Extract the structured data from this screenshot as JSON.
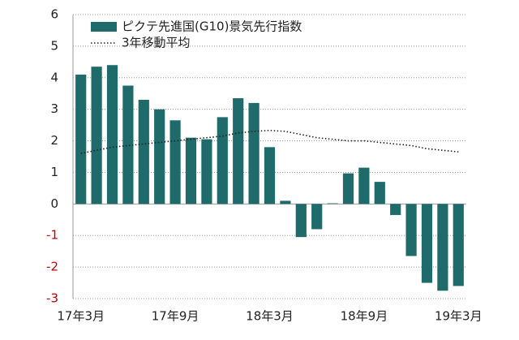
{
  "chart_data": {
    "type": "bar",
    "categories": [
      "17年3月",
      null,
      null,
      null,
      null,
      null,
      "17年9月",
      null,
      null,
      null,
      null,
      null,
      "18年3月",
      null,
      null,
      null,
      null,
      null,
      "18年9月",
      null,
      null,
      null,
      null,
      null,
      "19年3月"
    ],
    "series": [
      {
        "name": "ピクテ先進国(G10)景気先行指数",
        "type": "bar",
        "color": "#1f6b6b",
        "values": [
          4.1,
          4.35,
          4.4,
          3.75,
          3.3,
          3.0,
          2.65,
          2.1,
          2.05,
          2.75,
          3.35,
          3.2,
          1.8,
          0.1,
          -1.05,
          -0.8,
          0.02,
          0.97,
          1.15,
          0.7,
          -0.35,
          -1.65,
          -2.5,
          -2.75,
          -2.6
        ]
      },
      {
        "name": "3年移動平均",
        "type": "line",
        "color": "#222222",
        "values": [
          1.6,
          1.7,
          1.8,
          1.85,
          1.9,
          1.95,
          2.0,
          2.05,
          2.1,
          2.15,
          2.25,
          2.3,
          2.33,
          2.3,
          2.2,
          2.1,
          2.05,
          2.0,
          2.0,
          1.95,
          1.9,
          1.85,
          1.75,
          1.7,
          1.65
        ]
      }
    ],
    "ylim": [
      -3,
      6
    ],
    "yticks": [
      -3,
      -2,
      -1,
      0,
      1,
      2,
      3,
      4,
      5,
      6
    ],
    "grid": true,
    "legend": "top-left",
    "negative_tick_color": "#c00000"
  }
}
